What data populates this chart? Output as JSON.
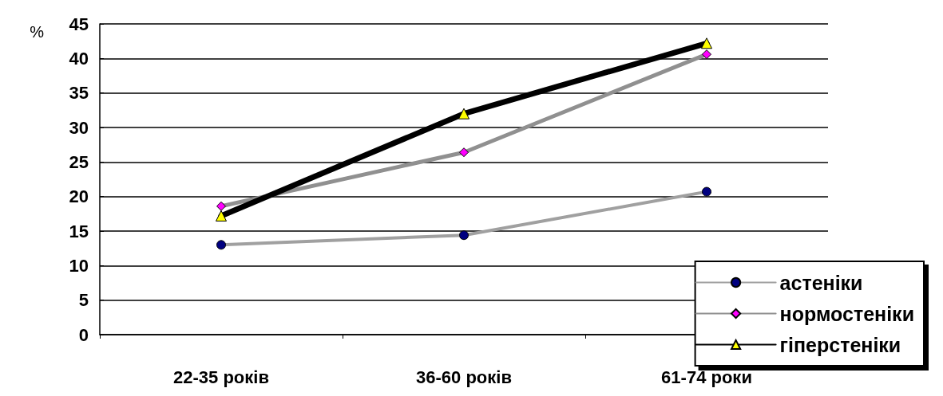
{
  "chart_data": {
    "type": "line",
    "ylabel": "%",
    "categories": [
      "22-35 років",
      "36-60 років",
      "61-74 роки"
    ],
    "series": [
      {
        "name": "астеніки",
        "color": "#a0a0a0",
        "marker": "circle",
        "values": [
          13,
          14.4,
          20.7
        ]
      },
      {
        "name": "нормостеніки",
        "color": "#909090",
        "marker": "diamond",
        "values": [
          18.6,
          26.4,
          40.6
        ]
      },
      {
        "name": "гіперстеніки",
        "color": "#000000",
        "marker": "triangle",
        "values": [
          17.2,
          32,
          42.2
        ]
      }
    ],
    "ylim": [
      0,
      45
    ],
    "yticks": [
      0,
      5,
      10,
      15,
      20,
      25,
      30,
      35,
      40,
      45
    ],
    "grid": "y",
    "legend": "bottom right"
  }
}
